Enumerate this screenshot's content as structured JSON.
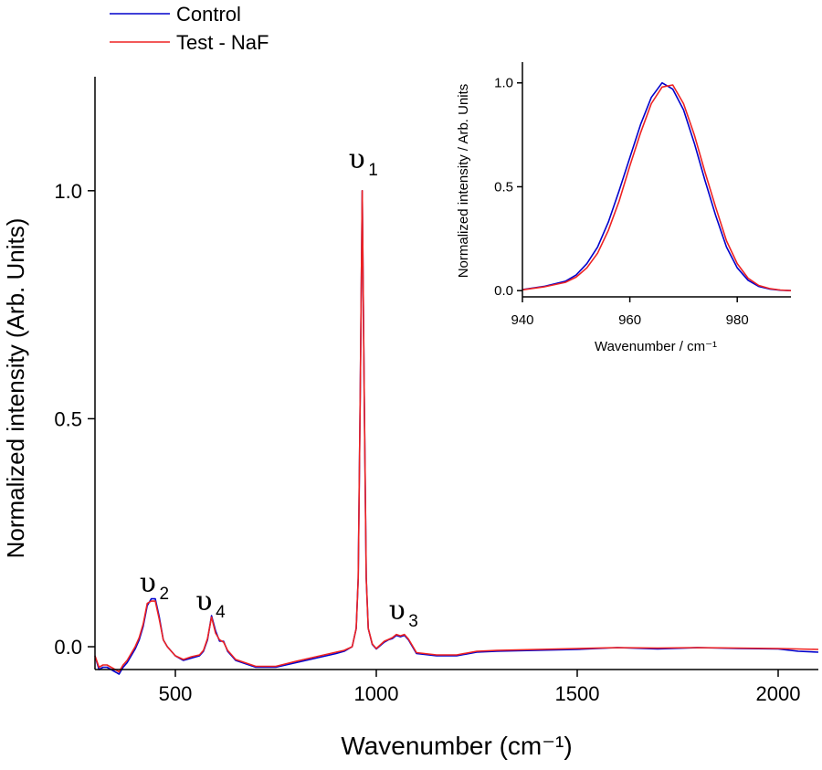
{
  "chart_data": [
    {
      "type": "line",
      "xlabel": "Wavenumber (cm⁻¹)",
      "ylabel": "Normalized intensity (Arb. Units)",
      "xlim": [
        300,
        2100
      ],
      "ylim": [
        -0.05,
        1.25
      ],
      "xticks": [
        500,
        1000,
        1500,
        2000
      ],
      "xtick_labels": [
        "500",
        "1000",
        "1500",
        "2000"
      ],
      "yticks": [
        0.0,
        0.5,
        1.0
      ],
      "ytick_labels": [
        "0.0",
        "0.5",
        "1.0"
      ],
      "grid": false,
      "legend_position": "top-left",
      "series": [
        {
          "name": "Control",
          "color": "#0000cc",
          "x": [
            300,
            310,
            320,
            330,
            340,
            350,
            360,
            370,
            380,
            390,
            400,
            410,
            420,
            430,
            440,
            450,
            460,
            470,
            480,
            490,
            500,
            520,
            540,
            560,
            570,
            580,
            590,
            600,
            610,
            620,
            630,
            650,
            700,
            750,
            800,
            850,
            900,
            920,
            940,
            950,
            955,
            960,
            965,
            970,
            975,
            980,
            990,
            1000,
            1020,
            1030,
            1040,
            1050,
            1060,
            1070,
            1080,
            1090,
            1100,
            1150,
            1200,
            1250,
            1300,
            1400,
            1500,
            1600,
            1700,
            1800,
            1900,
            2000,
            2050,
            2100
          ],
          "y": [
            -0.02,
            -0.05,
            -0.045,
            -0.045,
            -0.05,
            -0.055,
            -0.06,
            -0.045,
            -0.035,
            -0.02,
            -0.005,
            0.015,
            0.045,
            0.09,
            0.105,
            0.105,
            0.065,
            0.015,
            0.0,
            -0.01,
            -0.02,
            -0.03,
            -0.025,
            -0.02,
            -0.01,
            0.015,
            0.068,
            0.035,
            0.012,
            0.012,
            -0.01,
            -0.03,
            -0.045,
            -0.045,
            -0.035,
            -0.025,
            -0.015,
            -0.01,
            0.0,
            0.04,
            0.15,
            0.55,
            1.0,
            0.55,
            0.15,
            0.04,
            0.005,
            -0.005,
            0.01,
            0.015,
            0.018,
            0.025,
            0.022,
            0.025,
            0.015,
            0.0,
            -0.015,
            -0.02,
            -0.02,
            -0.012,
            -0.01,
            -0.008,
            -0.006,
            -0.002,
            -0.005,
            -0.002,
            -0.004,
            -0.005,
            -0.01,
            -0.012
          ]
        },
        {
          "name": "Test - NaF",
          "color": "#ee2222",
          "x": [
            300,
            310,
            320,
            330,
            340,
            350,
            360,
            370,
            380,
            390,
            400,
            410,
            420,
            430,
            440,
            450,
            460,
            470,
            480,
            490,
            500,
            520,
            540,
            560,
            570,
            580,
            590,
            600,
            610,
            620,
            630,
            650,
            700,
            750,
            800,
            850,
            900,
            920,
            940,
            950,
            955,
            960,
            965,
            970,
            975,
            980,
            990,
            1000,
            1020,
            1030,
            1040,
            1050,
            1060,
            1070,
            1080,
            1090,
            1100,
            1150,
            1200,
            1250,
            1300,
            1400,
            1500,
            1600,
            1700,
            1800,
            1900,
            2000,
            2050,
            2100
          ],
          "y": [
            -0.02,
            -0.045,
            -0.04,
            -0.04,
            -0.045,
            -0.05,
            -0.055,
            -0.04,
            -0.03,
            -0.015,
            0.0,
            0.02,
            0.05,
            0.095,
            0.1,
            0.1,
            0.06,
            0.015,
            0.0,
            -0.01,
            -0.02,
            -0.028,
            -0.022,
            -0.018,
            -0.008,
            0.018,
            0.065,
            0.03,
            0.015,
            0.01,
            -0.008,
            -0.028,
            -0.043,
            -0.043,
            -0.032,
            -0.022,
            -0.012,
            -0.008,
            0.0,
            0.04,
            0.15,
            0.55,
            1.0,
            0.55,
            0.15,
            0.04,
            0.006,
            -0.004,
            0.012,
            0.016,
            0.02,
            0.027,
            0.024,
            0.027,
            0.017,
            0.002,
            -0.013,
            -0.018,
            -0.018,
            -0.01,
            -0.008,
            -0.006,
            -0.004,
            -0.002,
            -0.003,
            -0.002,
            -0.003,
            -0.004,
            -0.005,
            -0.006
          ]
        }
      ],
      "annotations": [
        {
          "symbol": "υ",
          "sub": "1",
          "x": 965,
          "y": 1.05
        },
        {
          "symbol": "υ",
          "sub": "2",
          "x": 445,
          "y": 0.12
        },
        {
          "symbol": "υ",
          "sub": "4",
          "x": 585,
          "y": 0.08
        },
        {
          "symbol": "υ",
          "sub": "3",
          "x": 1065,
          "y": 0.06
        }
      ]
    },
    {
      "type": "line",
      "xlabel": "Wavenumber / cm⁻¹",
      "ylabel": "Normalized intensity / Arb. Units",
      "xlim": [
        940,
        990
      ],
      "ylim": [
        -0.03,
        1.1
      ],
      "xticks": [
        940,
        960,
        980
      ],
      "xtick_labels": [
        "940",
        "960",
        "980"
      ],
      "yticks": [
        0.0,
        0.5,
        1.0
      ],
      "ytick_labels": [
        "0.0",
        "0.5",
        "1.0"
      ],
      "grid": false,
      "series": [
        {
          "name": "Control",
          "color": "#0000cc",
          "x": [
            940,
            944,
            948,
            950,
            952,
            954,
            956,
            958,
            960,
            962,
            964,
            966,
            968,
            970,
            972,
            974,
            976,
            978,
            980,
            982,
            984,
            986,
            988,
            990
          ],
          "y": [
            0.005,
            0.02,
            0.045,
            0.075,
            0.13,
            0.21,
            0.33,
            0.48,
            0.64,
            0.8,
            0.93,
            1.0,
            0.97,
            0.87,
            0.71,
            0.53,
            0.36,
            0.21,
            0.11,
            0.05,
            0.02,
            0.008,
            0.002,
            0.0
          ]
        },
        {
          "name": "Test - NaF",
          "color": "#ee2222",
          "x": [
            940,
            944,
            948,
            950,
            952,
            954,
            956,
            958,
            960,
            962,
            964,
            966,
            968,
            970,
            972,
            974,
            976,
            978,
            980,
            982,
            984,
            986,
            988,
            990
          ],
          "y": [
            0.004,
            0.018,
            0.04,
            0.065,
            0.11,
            0.18,
            0.29,
            0.43,
            0.6,
            0.76,
            0.9,
            0.98,
            0.99,
            0.9,
            0.75,
            0.57,
            0.4,
            0.24,
            0.13,
            0.06,
            0.025,
            0.01,
            0.003,
            0.0
          ]
        }
      ]
    }
  ]
}
